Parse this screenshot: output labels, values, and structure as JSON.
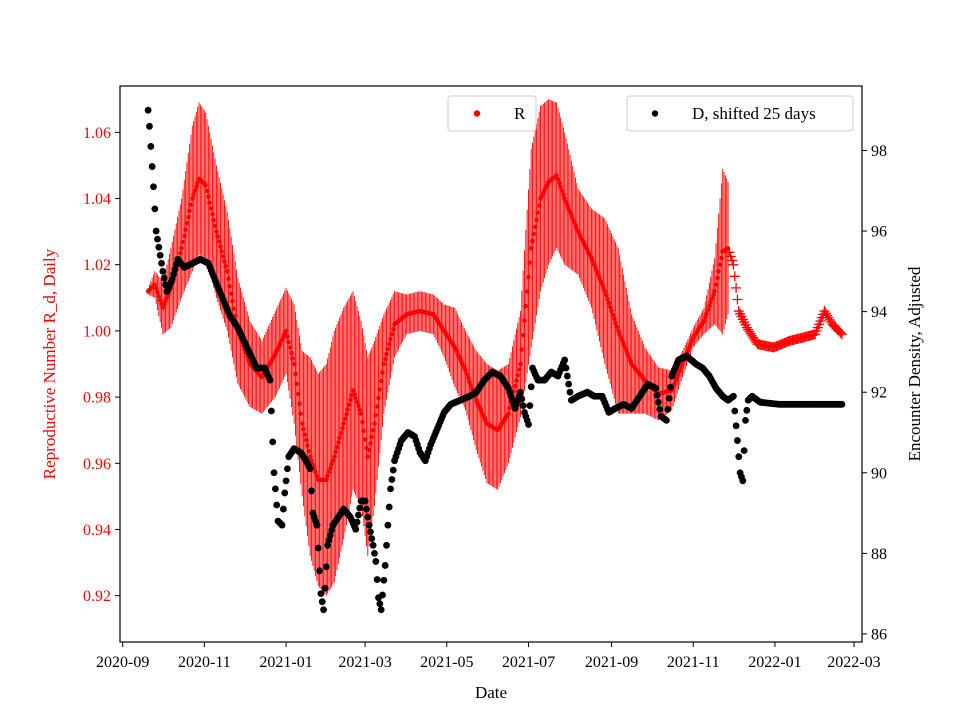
{
  "chart_data": {
    "type": "scatter",
    "xlabel": "Date",
    "ylabel_left": "Reproductive Number R_d, Daily",
    "ylabel_right": "Encounter Density, Adjusted",
    "x_tick_labels": [
      "2020-09",
      "2020-11",
      "2021-01",
      "2021-03",
      "2021-05",
      "2021-07",
      "2021-09",
      "2021-11",
      "2022-01",
      "2022-03"
    ],
    "x_ticks_day_offset": [
      0,
      61,
      122,
      181,
      242,
      303,
      365,
      426,
      487,
      546
    ],
    "xlim_day_offset": [
      -2,
      552
    ],
    "ylim_left": [
      0.906,
      1.074
    ],
    "ylim_right": [
      85.8,
      99.6
    ],
    "y_left_ticks": [
      0.92,
      0.94,
      0.96,
      0.98,
      1.0,
      1.02,
      1.04,
      1.06
    ],
    "y_left_tick_labels": [
      "0.92",
      "0.94",
      "0.96",
      "0.98",
      "1.00",
      "1.02",
      "1.04",
      "1.06"
    ],
    "y_right_ticks": [
      86,
      88,
      90,
      92,
      94,
      96,
      98
    ],
    "y_right_tick_labels": [
      "86",
      "88",
      "90",
      "92",
      "94",
      "96",
      "98"
    ],
    "colors": {
      "R": "#ff0000",
      "D": "#000000",
      "axes": "#000000"
    },
    "legend": [
      {
        "label": "R",
        "color": "#ff0000",
        "position": "upper-center"
      },
      {
        "label": "D, shifted 25 days",
        "color": "#000000",
        "position": "upper-right"
      }
    ],
    "series": [
      {
        "name": "R",
        "axis": "left",
        "style": "markers with daily error bars",
        "x_start_day": 19,
        "x_end_day": 537,
        "errorbar_end_day": 452,
        "keypoints": [
          [
            19,
            1.012,
            0.001
          ],
          [
            24,
            1.014,
            0.004
          ],
          [
            30,
            1.007,
            0.008
          ],
          [
            36,
            1.013,
            0.012
          ],
          [
            44,
            1.025,
            0.015
          ],
          [
            52,
            1.04,
            0.022
          ],
          [
            57,
            1.046,
            0.023
          ],
          [
            62,
            1.044,
            0.022
          ],
          [
            70,
            1.03,
            0.02
          ],
          [
            78,
            1.018,
            0.018
          ],
          [
            86,
            1.0,
            0.016
          ],
          [
            95,
            0.99,
            0.013
          ],
          [
            104,
            0.986,
            0.011
          ],
          [
            114,
            0.993,
            0.013
          ],
          [
            122,
            1.0,
            0.013
          ],
          [
            128,
            0.99,
            0.018
          ],
          [
            134,
            0.972,
            0.022
          ],
          [
            140,
            0.962,
            0.03
          ],
          [
            146,
            0.955,
            0.032
          ],
          [
            152,
            0.955,
            0.035
          ],
          [
            158,
            0.962,
            0.038
          ],
          [
            165,
            0.972,
            0.035
          ],
          [
            172,
            0.982,
            0.03
          ],
          [
            178,
            0.975,
            0.028
          ],
          [
            183,
            0.962,
            0.03
          ],
          [
            188,
            0.972,
            0.025
          ],
          [
            195,
            0.99,
            0.015
          ],
          [
            203,
            1.002,
            0.01
          ],
          [
            212,
            1.005,
            0.006
          ],
          [
            222,
            1.006,
            0.006
          ],
          [
            232,
            1.005,
            0.006
          ],
          [
            240,
            1.0,
            0.008
          ],
          [
            248,
            0.995,
            0.012
          ],
          [
            256,
            0.988,
            0.012
          ],
          [
            264,
            0.979,
            0.015
          ],
          [
            272,
            0.972,
            0.018
          ],
          [
            280,
            0.97,
            0.018
          ],
          [
            288,
            0.975,
            0.015
          ],
          [
            297,
            0.99,
            0.016
          ],
          [
            305,
            1.025,
            0.03
          ],
          [
            312,
            1.04,
            0.028
          ],
          [
            318,
            1.045,
            0.025
          ],
          [
            324,
            1.047,
            0.022
          ],
          [
            330,
            1.04,
            0.02
          ],
          [
            340,
            1.03,
            0.013
          ],
          [
            350,
            1.022,
            0.015
          ],
          [
            360,
            1.012,
            0.022
          ],
          [
            370,
            1.0,
            0.025
          ],
          [
            380,
            0.99,
            0.015
          ],
          [
            390,
            0.985,
            0.01
          ],
          [
            400,
            0.981,
            0.008
          ],
          [
            410,
            0.982,
            0.006
          ],
          [
            418,
            0.99,
            0.004
          ],
          [
            426,
            0.998,
            0.003
          ],
          [
            434,
            1.003,
            0.004
          ],
          [
            442,
            1.012,
            0.01
          ],
          [
            448,
            1.024,
            0.025
          ],
          [
            452,
            1.025,
            0.02
          ],
          [
            456,
            1.02,
            0
          ],
          [
            460,
            1.006,
            0
          ],
          [
            466,
            1.001,
            0
          ],
          [
            474,
            0.996,
            0
          ],
          [
            486,
            0.995,
            0
          ],
          [
            498,
            0.997,
            0
          ],
          [
            508,
            0.998,
            0
          ],
          [
            517,
            0.999,
            0
          ],
          [
            524,
            1.006,
            0
          ],
          [
            530,
            1.002,
            0
          ],
          [
            537,
            0.999,
            0
          ]
        ]
      },
      {
        "name": "D, shifted 25 days",
        "axis": "right",
        "style": "markers",
        "x_start_day": 19,
        "x_end_day": 537,
        "keypoints": [
          [
            19,
            99.0
          ],
          [
            20,
            98.6
          ],
          [
            21,
            98.1
          ],
          [
            23,
            97.1
          ],
          [
            25,
            96.0
          ],
          [
            27,
            95.6
          ],
          [
            30,
            95.0
          ],
          [
            33,
            94.5
          ],
          [
            37,
            94.8
          ],
          [
            41,
            95.3
          ],
          [
            46,
            95.1
          ],
          [
            52,
            95.2
          ],
          [
            58,
            95.3
          ],
          [
            64,
            95.2
          ],
          [
            70,
            94.7
          ],
          [
            75,
            94.3
          ],
          [
            80,
            93.9
          ],
          [
            86,
            93.6
          ],
          [
            93,
            93.1
          ],
          [
            100,
            92.6
          ],
          [
            106,
            92.6
          ],
          [
            110,
            92.3
          ],
          [
            113,
            90.0
          ],
          [
            116,
            88.8
          ],
          [
            119,
            88.7
          ],
          [
            121,
            89.5
          ],
          [
            124,
            90.4
          ],
          [
            128,
            90.6
          ],
          [
            133,
            90.5
          ],
          [
            137,
            90.3
          ],
          [
            140,
            90.1
          ],
          [
            142,
            89.0
          ],
          [
            145,
            88.7
          ],
          [
            148,
            87.0
          ],
          [
            150,
            86.6
          ],
          [
            153,
            88.2
          ],
          [
            157,
            88.7
          ],
          [
            161,
            88.9
          ],
          [
            165,
            89.1
          ],
          [
            170,
            88.9
          ],
          [
            174,
            88.6
          ],
          [
            178,
            89.3
          ],
          [
            181,
            89.3
          ],
          [
            184,
            88.7
          ],
          [
            187,
            88.2
          ],
          [
            189,
            87.8
          ],
          [
            191,
            86.9
          ],
          [
            193,
            86.6
          ],
          [
            196,
            87.7
          ],
          [
            198,
            88.7
          ],
          [
            200,
            89.6
          ],
          [
            203,
            90.3
          ],
          [
            208,
            90.8
          ],
          [
            213,
            91.0
          ],
          [
            218,
            90.9
          ],
          [
            222,
            90.5
          ],
          [
            226,
            90.3
          ],
          [
            230,
            90.7
          ],
          [
            235,
            91.1
          ],
          [
            240,
            91.5
          ],
          [
            245,
            91.7
          ],
          [
            252,
            91.8
          ],
          [
            259,
            91.9
          ],
          [
            264,
            92.0
          ],
          [
            270,
            92.3
          ],
          [
            276,
            92.5
          ],
          [
            282,
            92.4
          ],
          [
            288,
            92.1
          ],
          [
            293,
            91.6
          ],
          [
            297,
            92.0
          ],
          [
            300,
            91.5
          ],
          [
            303,
            91.2
          ],
          [
            306,
            92.6
          ],
          [
            310,
            92.3
          ],
          [
            315,
            92.3
          ],
          [
            320,
            92.5
          ],
          [
            325,
            92.4
          ],
          [
            330,
            92.8
          ],
          [
            335,
            91.8
          ],
          [
            340,
            91.9
          ],
          [
            347,
            92.0
          ],
          [
            352,
            91.9
          ],
          [
            358,
            91.9
          ],
          [
            363,
            91.5
          ],
          [
            368,
            91.6
          ],
          [
            374,
            91.7
          ],
          [
            380,
            91.6
          ],
          [
            386,
            91.9
          ],
          [
            392,
            92.2
          ],
          [
            398,
            92.1
          ],
          [
            402,
            91.4
          ],
          [
            406,
            91.3
          ],
          [
            410,
            92.4
          ],
          [
            415,
            92.8
          ],
          [
            421,
            92.9
          ],
          [
            428,
            92.7
          ],
          [
            433,
            92.6
          ],
          [
            438,
            92.4
          ],
          [
            443,
            92.1
          ],
          [
            448,
            91.9
          ],
          [
            452,
            91.8
          ],
          [
            456,
            91.9
          ],
          [
            459,
            90.8
          ],
          [
            461,
            90.0
          ],
          [
            463,
            89.8
          ],
          [
            465,
            91.3
          ],
          [
            467,
            91.8
          ],
          [
            470,
            91.9
          ],
          [
            476,
            91.75
          ],
          [
            490,
            91.7
          ],
          [
            510,
            91.7
          ],
          [
            525,
            91.7
          ],
          [
            537,
            91.7
          ]
        ]
      }
    ]
  }
}
